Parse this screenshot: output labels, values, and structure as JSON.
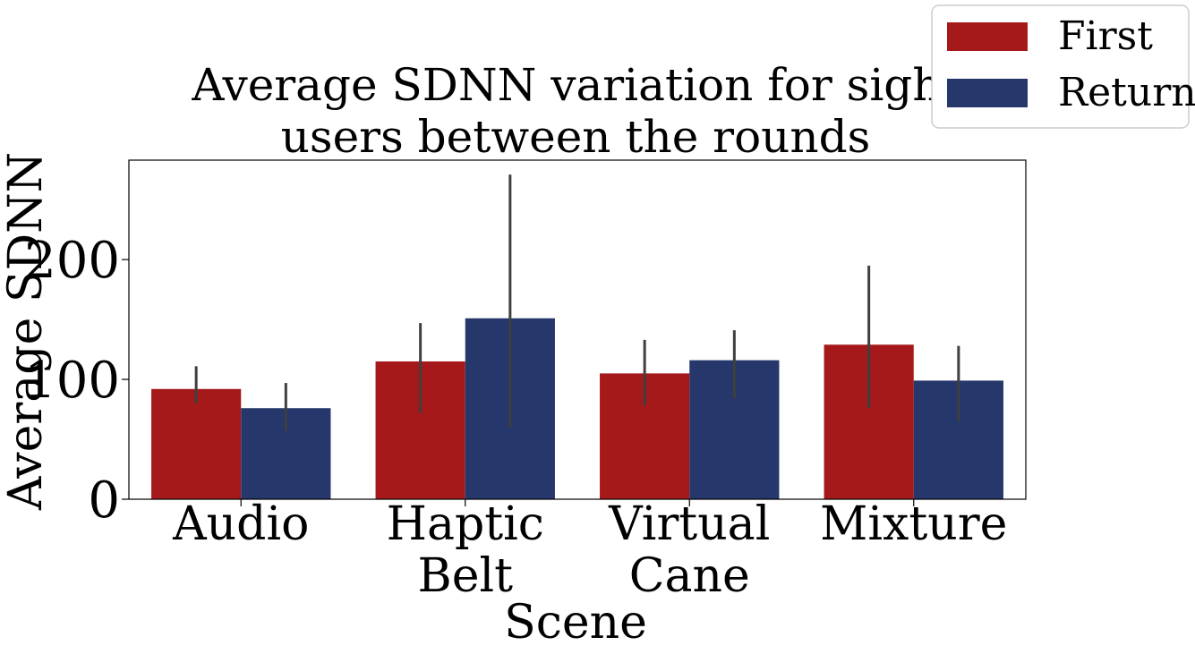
{
  "chart_data": {
    "type": "bar",
    "title_lines": [
      "Average SDNN variation for sight",
      "users between the rounds"
    ],
    "xlabel": "Scene",
    "ylabel": "Average SDNN",
    "categories": [
      [
        "Audio"
      ],
      [
        "Haptic",
        "Belt"
      ],
      [
        "Virtual",
        "Cane"
      ],
      [
        "Mixture"
      ]
    ],
    "ylim": [
      0,
      283
    ],
    "yticks": [
      0,
      100,
      200
    ],
    "grid": false,
    "legend_position": "top-right",
    "series": [
      {
        "name": "First",
        "color": "#a6191a",
        "values": [
          92,
          115,
          105,
          129
        ],
        "err_low": [
          80,
          72,
          78,
          76
        ],
        "err_high": [
          111,
          147,
          133,
          195
        ]
      },
      {
        "name": "Return",
        "color": "#25376b",
        "values": [
          76,
          151,
          116,
          99
        ],
        "err_low": [
          57,
          60,
          84,
          65
        ],
        "err_high": [
          97,
          271,
          141,
          128
        ]
      }
    ],
    "error_color": "#3f3f3f"
  }
}
